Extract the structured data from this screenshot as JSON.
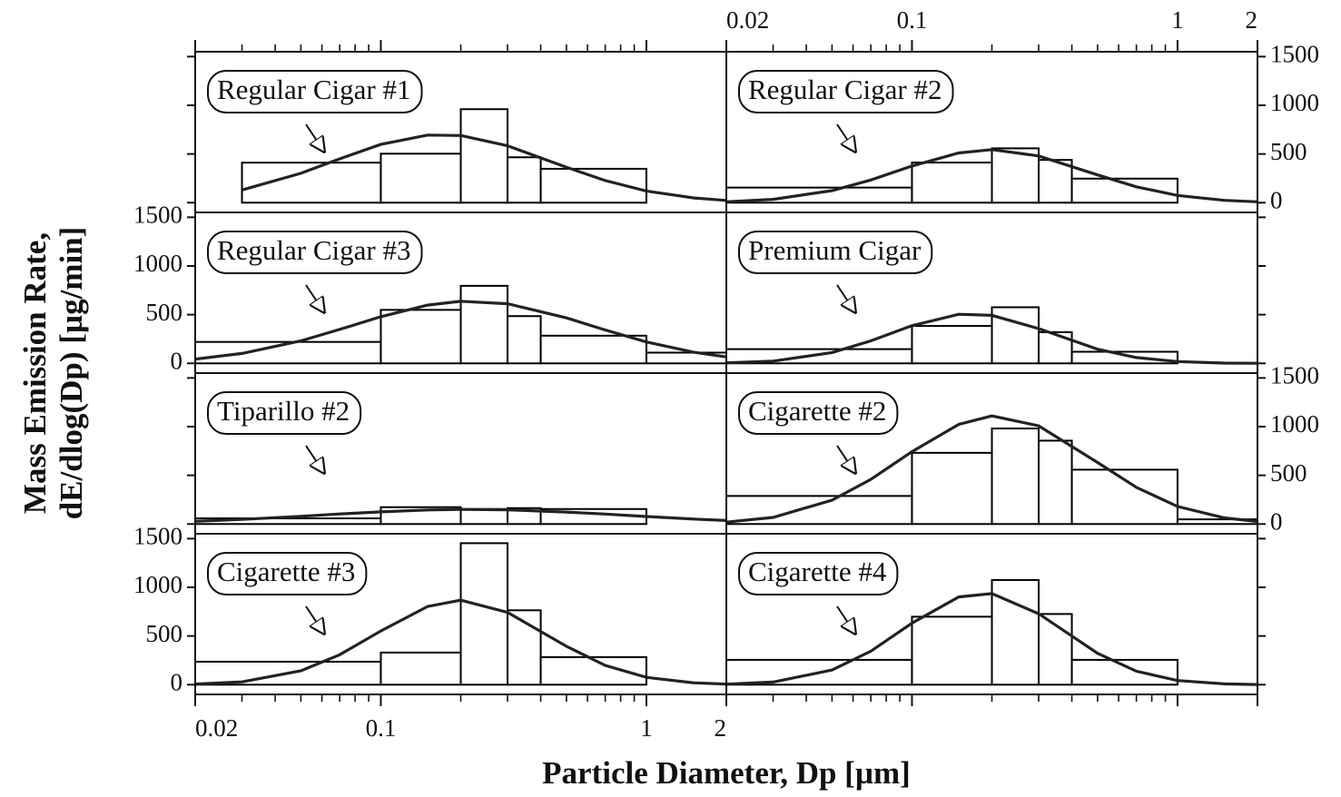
{
  "figure": {
    "xlabel": "Particle Diameter, Dp  [µm]",
    "ylabel": [
      "Mass Emission Rate,",
      "dE/dlog(Dp)  [µg/min]"
    ]
  },
  "chart_data": [
    {
      "type": "histogram",
      "title": "Regular Cigar #1",
      "bins": [
        0.03,
        0.1,
        0.2,
        0.3,
        0.4,
        1
      ],
      "values": [
        411,
        503,
        960,
        466,
        348
      ],
      "curve": {
        "x": [
          0.03,
          0.05,
          0.07,
          0.1,
          0.15,
          0.2,
          0.3,
          0.5,
          0.7,
          1,
          1.5,
          2
        ],
        "y": [
          130,
          302,
          450,
          598,
          694,
          690,
          584,
          364,
          227,
          120,
          49,
          23
        ]
      },
      "log_x": true,
      "xlim": [
        0.02,
        2
      ],
      "ylim": [
        -100,
        1550
      ],
      "xticks": [
        0.02,
        0.1,
        1,
        2
      ],
      "xminor": [
        0.03,
        0.04,
        0.05,
        0.06,
        0.07,
        0.08,
        0.09,
        0.2,
        0.3,
        0.4,
        0.5,
        0.6,
        0.7,
        0.8,
        0.9
      ],
      "yticks": [
        0,
        500,
        1000,
        1500
      ],
      "ytick_labels": "none",
      "xtick_labels": "none",
      "bar_color": "#ffffff",
      "edge_color": "#000000",
      "curve_color": "#222222"
    },
    {
      "type": "histogram",
      "title": "Regular Cigar #2",
      "bins": [
        0.02,
        0.1,
        0.2,
        0.3,
        0.4,
        1
      ],
      "values": [
        155,
        412,
        558,
        439,
        247
      ],
      "curve": {
        "x": [
          0.02,
          0.03,
          0.05,
          0.07,
          0.1,
          0.15,
          0.2,
          0.3,
          0.5,
          0.7,
          1,
          1.5,
          2
        ],
        "y": [
          9,
          34,
          124,
          233,
          376,
          511,
          545,
          480,
          285,
          163,
          74,
          24,
          9
        ]
      },
      "log_x": true,
      "xlim": [
        0.02,
        2
      ],
      "ylim": [
        -100,
        1550
      ],
      "xticks": [
        0.02,
        0.1,
        1,
        2
      ],
      "xminor": [
        0.03,
        0.04,
        0.05,
        0.06,
        0.07,
        0.08,
        0.09,
        0.2,
        0.3,
        0.4,
        0.5,
        0.6,
        0.7,
        0.8,
        0.9
      ],
      "yticks": [
        0,
        500,
        1000,
        1500
      ],
      "ytick_labels": "right",
      "xtick_labels": "top",
      "bar_color": "#ffffff",
      "edge_color": "#000000",
      "curve_color": "#222222"
    },
    {
      "type": "histogram",
      "title": "Regular Cigar #3",
      "bins": [
        0.02,
        0.1,
        0.2,
        0.3,
        0.4,
        1,
        2
      ],
      "values": [
        220,
        549,
        796,
        485,
        284,
        110
      ],
      "curve": {
        "x": [
          0.02,
          0.03,
          0.05,
          0.07,
          0.1,
          0.15,
          0.2,
          0.3,
          0.5,
          0.7,
          1,
          1.5,
          2
        ],
        "y": [
          44,
          101,
          231,
          348,
          479,
          598,
          637,
          612,
          467,
          343,
          220,
          115,
          66
        ]
      },
      "log_x": true,
      "xlim": [
        0.02,
        2
      ],
      "ylim": [
        -100,
        1550
      ],
      "xticks": [
        0.02,
        0.1,
        1,
        2
      ],
      "xminor": [
        0.03,
        0.04,
        0.05,
        0.06,
        0.07,
        0.08,
        0.09,
        0.2,
        0.3,
        0.4,
        0.5,
        0.6,
        0.7,
        0.8,
        0.9
      ],
      "yticks": [
        0,
        500,
        1000,
        1500
      ],
      "ytick_labels": "left",
      "xtick_labels": "none",
      "bar_color": "#ffffff",
      "edge_color": "#000000",
      "curve_color": "#222222"
    },
    {
      "type": "histogram",
      "title": "Premium Cigar",
      "bins": [
        0.02,
        0.1,
        0.2,
        0.3,
        0.4,
        1
      ],
      "values": [
        146,
        384,
        576,
        320,
        119
      ],
      "curve": {
        "x": [
          0.02,
          0.03,
          0.05,
          0.07,
          0.1,
          0.15,
          0.2,
          0.3,
          0.5,
          0.7,
          1,
          1.5,
          2
        ],
        "y": [
          5,
          23,
          111,
          231,
          387,
          504,
          493,
          357,
          145,
          59,
          18,
          3,
          1
        ]
      },
      "log_x": true,
      "xlim": [
        0.02,
        2
      ],
      "ylim": [
        -100,
        1550
      ],
      "xticks": [
        0.02,
        0.1,
        1,
        2
      ],
      "xminor": [
        0.03,
        0.04,
        0.05,
        0.06,
        0.07,
        0.08,
        0.09,
        0.2,
        0.3,
        0.4,
        0.5,
        0.6,
        0.7,
        0.8,
        0.9
      ],
      "yticks": [
        0,
        500,
        1000,
        1500
      ],
      "ytick_labels": "none",
      "xtick_labels": "none",
      "bar_color": "#ffffff",
      "edge_color": "#000000",
      "curve_color": "#222222"
    },
    {
      "type": "histogram",
      "title": "Tiparillo #2",
      "bins": [
        0.02,
        0.1,
        0.2,
        0.3,
        0.4,
        1
      ],
      "values": [
        58,
        173,
        154,
        163,
        154
      ],
      "curve": {
        "x": [
          0.02,
          0.03,
          0.05,
          0.07,
          0.1,
          0.15,
          0.2,
          0.3,
          0.5,
          0.7,
          1,
          1.5,
          2
        ],
        "y": [
          28,
          47,
          79,
          103,
          125,
          144,
          150,
          146,
          123,
          102,
          77,
          51,
          36
        ]
      },
      "log_x": true,
      "xlim": [
        0.02,
        2
      ],
      "ylim": [
        -100,
        1550
      ],
      "xticks": [
        0.02,
        0.1,
        1,
        2
      ],
      "xminor": [
        0.03,
        0.04,
        0.05,
        0.06,
        0.07,
        0.08,
        0.09,
        0.2,
        0.3,
        0.4,
        0.5,
        0.6,
        0.7,
        0.8,
        0.9
      ],
      "yticks": [
        0,
        500,
        1000,
        1500
      ],
      "ytick_labels": "none",
      "xtick_labels": "none",
      "bar_color": "#ffffff",
      "edge_color": "#000000",
      "curve_color": "#222222"
    },
    {
      "type": "histogram",
      "title": "Cigarette #2",
      "bins": [
        0.02,
        0.1,
        0.2,
        0.3,
        0.4,
        1,
        2
      ],
      "values": [
        288,
        731,
        981,
        856,
        558,
        48
      ],
      "curve": {
        "x": [
          0.02,
          0.03,
          0.05,
          0.07,
          0.1,
          0.15,
          0.2,
          0.3,
          0.5,
          0.7,
          1,
          1.5,
          2
        ],
        "y": [
          19,
          68,
          245,
          458,
          743,
          1023,
          1110,
          1008,
          632,
          376,
          181,
          63,
          26
        ]
      },
      "log_x": true,
      "xlim": [
        0.02,
        2
      ],
      "ylim": [
        -100,
        1550
      ],
      "xticks": [
        0.02,
        0.1,
        1,
        2
      ],
      "xminor": [
        0.03,
        0.04,
        0.05,
        0.06,
        0.07,
        0.08,
        0.09,
        0.2,
        0.3,
        0.4,
        0.5,
        0.6,
        0.7,
        0.8,
        0.9
      ],
      "yticks": [
        0,
        500,
        1000,
        1500
      ],
      "ytick_labels": "right",
      "xtick_labels": "none",
      "bar_color": "#ffffff",
      "edge_color": "#000000",
      "curve_color": "#222222"
    },
    {
      "type": "histogram",
      "title": "Cigarette #3",
      "bins": [
        0.02,
        0.1,
        0.2,
        0.3,
        0.4,
        1
      ],
      "values": [
        236,
        330,
        1453,
        764,
        283
      ],
      "curve": {
        "x": [
          0.02,
          0.03,
          0.05,
          0.07,
          0.1,
          0.15,
          0.2,
          0.3,
          0.5,
          0.7,
          1,
          1.5,
          2
        ],
        "y": [
          6,
          29,
          142,
          307,
          552,
          803,
          868,
          743,
          394,
          198,
          75,
          19,
          6
        ]
      },
      "log_x": true,
      "xlim": [
        0.02,
        2
      ],
      "ylim": [
        -100,
        1550
      ],
      "xticks": [
        0.02,
        0.1,
        1,
        2
      ],
      "xminor": [
        0.03,
        0.04,
        0.05,
        0.06,
        0.07,
        0.08,
        0.09,
        0.2,
        0.3,
        0.4,
        0.5,
        0.6,
        0.7,
        0.8,
        0.9
      ],
      "yticks": [
        0,
        500,
        1000,
        1500
      ],
      "ytick_labels": "left",
      "xtick_labels": "bottom",
      "bar_color": "#ffffff",
      "edge_color": "#000000",
      "curve_color": "#222222"
    },
    {
      "type": "histogram",
      "title": "Cigarette #4",
      "bins": [
        0.02,
        0.1,
        0.2,
        0.3,
        0.4,
        1
      ],
      "values": [
        255,
        698,
        1075,
        726,
        255
      ],
      "curve": {
        "x": [
          0.02,
          0.03,
          0.05,
          0.07,
          0.1,
          0.15,
          0.2,
          0.3,
          0.5,
          0.7,
          1,
          1.5,
          2
        ],
        "y": [
          5,
          27,
          151,
          344,
          632,
          901,
          936,
          729,
          322,
          139,
          43,
          8,
          2
        ]
      },
      "log_x": true,
      "xlim": [
        0.02,
        2
      ],
      "ylim": [
        -100,
        1550
      ],
      "xticks": [
        0.02,
        0.1,
        1,
        2
      ],
      "xminor": [
        0.03,
        0.04,
        0.05,
        0.06,
        0.07,
        0.08,
        0.09,
        0.2,
        0.3,
        0.4,
        0.5,
        0.6,
        0.7,
        0.8,
        0.9
      ],
      "yticks": [
        0,
        500,
        1000,
        1500
      ],
      "ytick_labels": "none",
      "xtick_labels": "none",
      "bar_color": "#ffffff",
      "edge_color": "#000000",
      "curve_color": "#222222"
    }
  ]
}
